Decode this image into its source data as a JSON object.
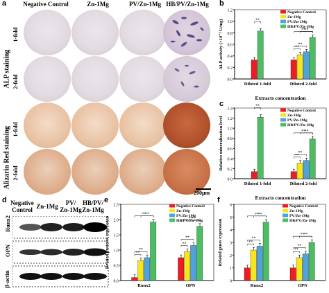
{
  "panel_letters": {
    "a": "a",
    "b": "b",
    "c": "c",
    "d": "d",
    "e": "e",
    "f": "f"
  },
  "panel_a": {
    "columns": [
      "Negative Control",
      "Zn-1Mg",
      "PV/Zn-1Mg",
      "HB/PV/Zn-1Mg"
    ],
    "groups": [
      "ALP staining",
      "Alizarin Red staining"
    ],
    "rows": [
      "1-fold",
      "2-fold",
      "1-fold",
      "2-fold"
    ],
    "scale_bar": "200μm"
  },
  "panel_d": {
    "columns": [
      {
        "line1": "Negative",
        "line2": "Control"
      },
      {
        "line1": "Zn-1Mg",
        "line2": ""
      },
      {
        "line1": "PV/",
        "line2": "Zn-1Mg"
      },
      {
        "line1": "HB/PV/",
        "line2": "Zn-1Mg"
      }
    ],
    "rows": [
      "Runx2",
      "OPN",
      "β-actin"
    ]
  },
  "colors": {
    "negative": "#ee1c25",
    "zn": "#f5e61e",
    "pv": "#4fa3dc",
    "hb": "#4dbd63"
  },
  "legend": [
    "Negative Control",
    "Zn-1Mg",
    "PV/Zn-1Mg",
    "HB/PV/Zn-1Mg"
  ],
  "chart_data": [
    {
      "panel": "b",
      "type": "bar",
      "title": "",
      "ylabel": "ALP activity (×10⁻² U/mg)",
      "xlabel": "Extracts concentration",
      "categories": [
        "Diluted 1-fold",
        "Diluted 2-fold"
      ],
      "ylim": [
        0,
        1.2
      ],
      "yticks": [
        "0.0",
        "0.2",
        "0.4",
        "0.6",
        "0.8",
        "1.0",
        "1.2"
      ],
      "series": [
        {
          "name": "Negative Control",
          "values": [
            0.33,
            0.33
          ]
        },
        {
          "name": "Zn-1Mg",
          "values": [
            null,
            0.42
          ]
        },
        {
          "name": "PV/Zn-1Mg",
          "values": [
            null,
            0.47
          ]
        },
        {
          "name": "HB/PV/Zn-1Mg",
          "values": [
            0.83,
            0.72
          ]
        }
      ],
      "significance": "**"
    },
    {
      "panel": "c",
      "type": "bar",
      "ylabel": "Relative mineralization level",
      "xlabel": "Extracts concentration",
      "categories": [
        "Diluted 1-fold",
        "Diluted 2-fold"
      ],
      "ylim": [
        0,
        1.4
      ],
      "yticks": [
        "0.0",
        "0.2",
        "0.4",
        "0.6",
        "0.8",
        "1.0",
        "1.2",
        "1.4"
      ],
      "series": [
        {
          "name": "Negative Control",
          "values": [
            0.14,
            0.14
          ]
        },
        {
          "name": "Zn-1Mg",
          "values": [
            null,
            0.31
          ]
        },
        {
          "name": "PV/Zn-1Mg",
          "values": [
            null,
            0.36
          ]
        },
        {
          "name": "HB/PV/Zn-1Mg",
          "values": [
            1.22,
            0.79
          ]
        }
      ],
      "significance": "**"
    },
    {
      "panel": "e",
      "type": "bar",
      "ylabel": "Related proteins expression",
      "categories": [
        "Runx2",
        "OPN"
      ],
      "ylim": [
        0,
        2.5
      ],
      "yticks": [
        "0.0",
        "0.5",
        "1.0",
        "1.5",
        "2.0",
        "2.5"
      ],
      "series": [
        {
          "name": "Negative Control",
          "values": [
            0.1,
            0.75
          ]
        },
        {
          "name": "Zn-1Mg",
          "values": [
            0.65,
            0.95
          ]
        },
        {
          "name": "PV/Zn-1Mg",
          "values": [
            0.75,
            1.15
          ]
        },
        {
          "name": "HB/PV/Zn-1Mg",
          "values": [
            1.92,
            1.78
          ]
        }
      ],
      "significance": "**"
    },
    {
      "panel": "f",
      "type": "bar",
      "ylabel": "Related genes expression",
      "categories": [
        "Runx2",
        "OPN"
      ],
      "ylim": [
        0,
        6
      ],
      "yticks": [
        "0",
        "1",
        "2",
        "3",
        "4",
        "5",
        "6"
      ],
      "series": [
        {
          "name": "Negative Control",
          "values": [
            1.0,
            1.0
          ]
        },
        {
          "name": "Zn-1Mg",
          "values": [
            2.4,
            1.8
          ]
        },
        {
          "name": "PV/Zn-1Mg",
          "values": [
            2.7,
            2.1
          ]
        },
        {
          "name": "HB/PV/Zn-1Mg",
          "values": [
            4.6,
            3.0
          ]
        }
      ],
      "significance": "**"
    }
  ]
}
